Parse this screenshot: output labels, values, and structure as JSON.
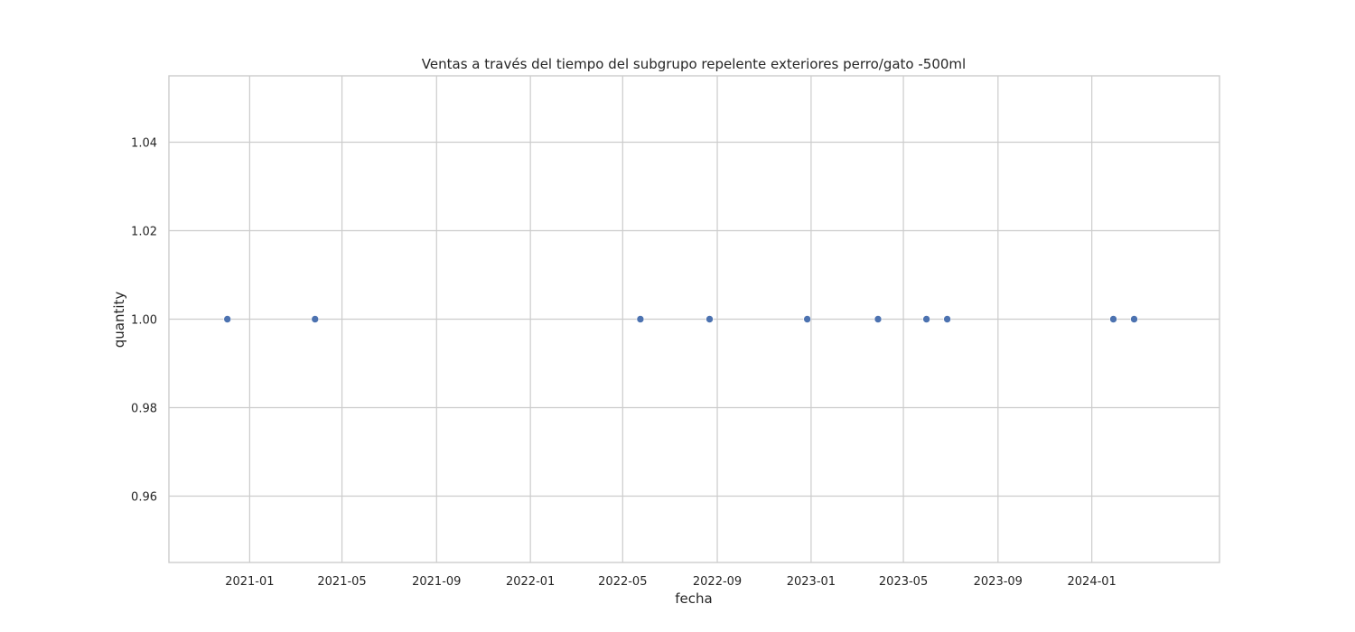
{
  "chart_data": {
    "type": "scatter",
    "title": "Ventas a través del tiempo del subgrupo repelente exteriores perro/gato -500ml",
    "xlabel": "fecha",
    "ylabel": "quantity",
    "x_type": "date",
    "xlim": [
      "2020-09-18",
      "2024-06-15"
    ],
    "ylim": [
      0.945,
      1.055
    ],
    "xticks": [
      "2021-01",
      "2021-05",
      "2021-09",
      "2022-01",
      "2022-05",
      "2022-09",
      "2023-01",
      "2023-05",
      "2023-09",
      "2024-01"
    ],
    "yticks": [
      "0.96",
      "0.98",
      "1.00",
      "1.02",
      "1.04"
    ],
    "grid": true,
    "point_color": "#4c72b0",
    "points": [
      {
        "x": "2020-12-03",
        "y": 1.0
      },
      {
        "x": "2021-03-27",
        "y": 1.0
      },
      {
        "x": "2022-05-24",
        "y": 1.0
      },
      {
        "x": "2022-08-22",
        "y": 1.0
      },
      {
        "x": "2022-12-27",
        "y": 1.0
      },
      {
        "x": "2023-03-29",
        "y": 1.0
      },
      {
        "x": "2023-05-31",
        "y": 1.0
      },
      {
        "x": "2023-06-27",
        "y": 1.0
      },
      {
        "x": "2024-01-29",
        "y": 1.0
      },
      {
        "x": "2024-02-25",
        "y": 1.0
      }
    ]
  }
}
